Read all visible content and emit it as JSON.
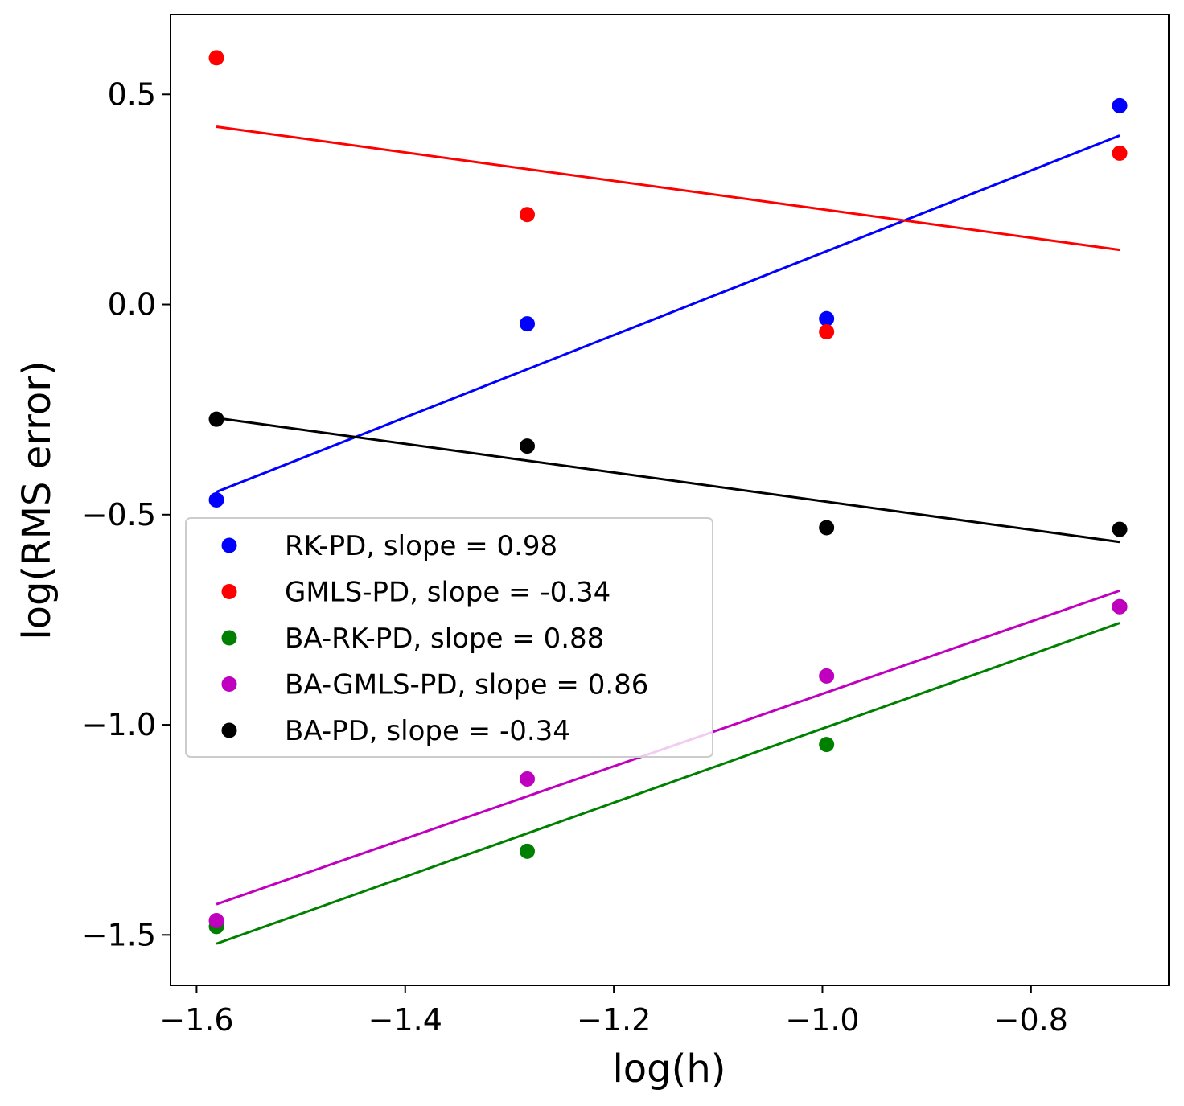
{
  "chart_data": {
    "type": "scatter",
    "xlabel": "log(h)",
    "ylabel": "log(RMS error)",
    "xlim": [
      -1.625,
      -0.668
    ],
    "ylim": [
      -1.62,
      0.69
    ],
    "xticks": [
      -1.6,
      -1.4,
      -1.2,
      -1.0,
      -0.8
    ],
    "xtick_labels": [
      "−1.6",
      "−1.4",
      "−1.2",
      "−1.0",
      "−0.8"
    ],
    "yticks": [
      0.5,
      0.0,
      -0.5,
      -1.0,
      -1.5
    ],
    "ytick_labels": [
      "0.5",
      "0.0",
      "−0.5",
      "−1.0",
      "−1.5"
    ],
    "grid": false,
    "legend_position": "center-left",
    "series": [
      {
        "name": "RK-PD, slope = 0.98",
        "color": "#0000ff",
        "x": [
          -1.581,
          -1.283,
          -0.996,
          -0.715
        ],
        "y": [
          -0.465,
          -0.046,
          -0.034,
          0.473
        ],
        "fit": [
          [
            -1.581,
            -0.446
          ],
          [
            -0.715,
            0.402
          ]
        ]
      },
      {
        "name": "GMLS-PD, slope = -0.34",
        "color": "#ff0000",
        "x": [
          -1.581,
          -1.283,
          -0.996,
          -0.715
        ],
        "y": [
          0.587,
          0.214,
          -0.065,
          0.36
        ],
        "fit": [
          [
            -1.581,
            0.423
          ],
          [
            -0.715,
            0.13
          ]
        ]
      },
      {
        "name": "BA-RK-PD, slope = 0.88",
        "color": "#008000",
        "x": [
          -1.581,
          -1.283,
          -0.996,
          -0.715
        ],
        "y": [
          -1.48,
          -1.301,
          -1.047,
          -0.719
        ],
        "fit": [
          [
            -1.581,
            -1.521
          ],
          [
            -0.715,
            -0.758
          ]
        ]
      },
      {
        "name": "BA-GMLS-PD, slope = 0.86",
        "color": "#bf00bf",
        "x": [
          -1.581,
          -1.283,
          -0.996,
          -0.715
        ],
        "y": [
          -1.466,
          -1.129,
          -0.884,
          -0.719
        ],
        "fit": [
          [
            -1.581,
            -1.427
          ],
          [
            -0.715,
            -0.681
          ]
        ]
      },
      {
        "name": "BA-PD, slope = -0.34",
        "color": "#000000",
        "x": [
          -1.581,
          -1.283,
          -0.996,
          -0.715
        ],
        "y": [
          -0.273,
          -0.337,
          -0.531,
          -0.535
        ],
        "fit": [
          [
            -1.581,
            -0.27
          ],
          [
            -0.715,
            -0.565
          ]
        ]
      }
    ]
  }
}
